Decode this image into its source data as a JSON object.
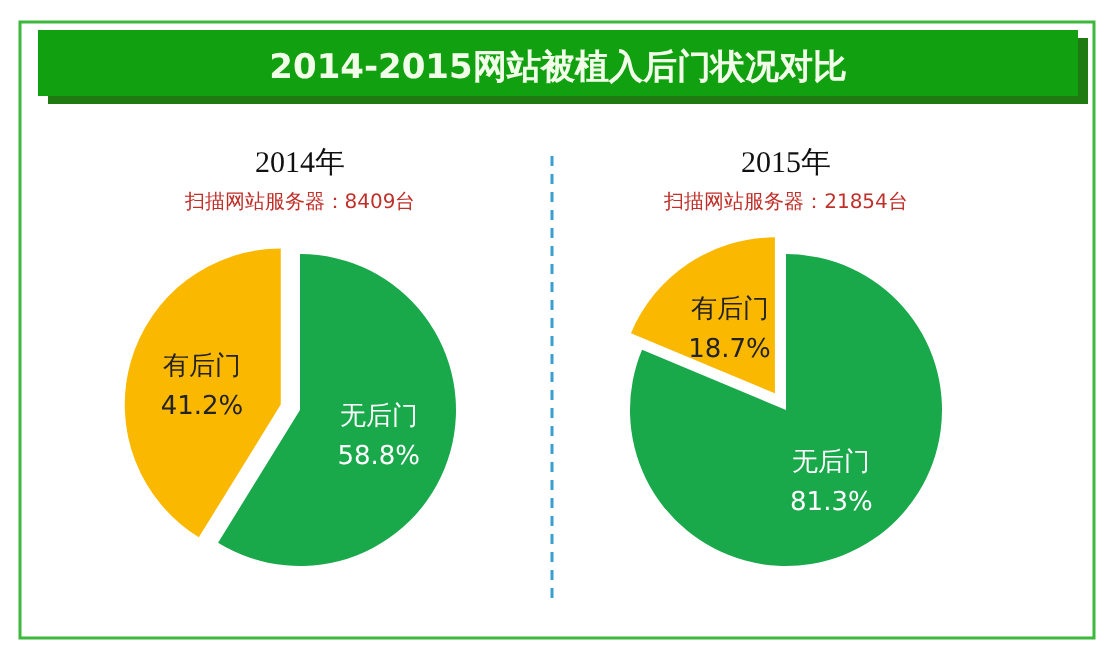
{
  "chart_data": [
    {
      "type": "other",
      "title": "2014-2015网站被植入后门状况对比"
    },
    {
      "type": "pie",
      "title": "2014年",
      "subtitle": "扫描网站服务器：8409台",
      "categories": [
        "无后门",
        "有后门"
      ],
      "values": [
        58.8,
        41.2
      ],
      "colors": [
        "#19a84a",
        "#fbb800"
      ],
      "value_labels": [
        "58.8%",
        "41.2%"
      ]
    },
    {
      "type": "pie",
      "title": "2015年",
      "subtitle": "扫描网站服务器：21854台",
      "categories": [
        "无后门",
        "有后门"
      ],
      "values": [
        81.3,
        18.7
      ],
      "colors": [
        "#19a84a",
        "#fbb800"
      ],
      "value_labels": [
        "81.3%",
        "18.7%"
      ]
    }
  ]
}
